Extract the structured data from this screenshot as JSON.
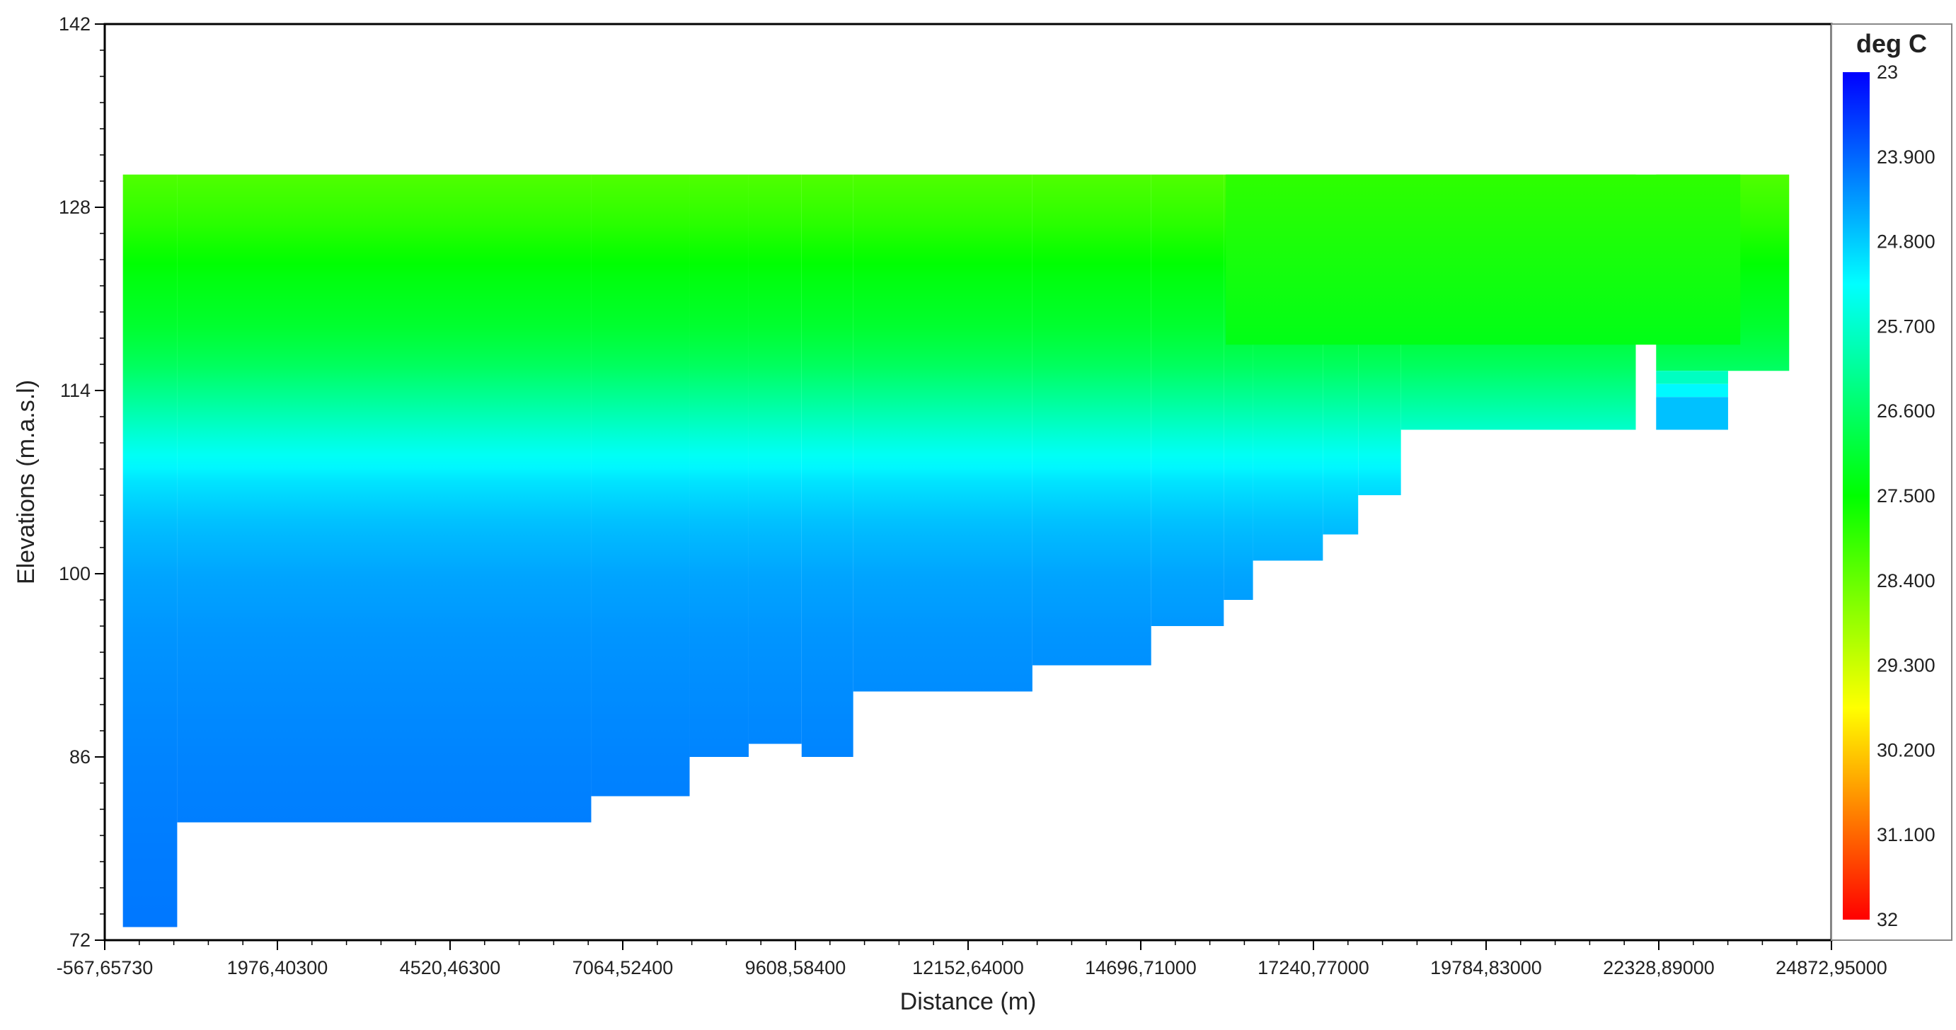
{
  "chart_data": {
    "type": "heatmap",
    "title": "",
    "xlabel": "Distance (m)",
    "ylabel": "Elevations (m.a.s.l)",
    "xlim": [
      -567.6573,
      24872.95
    ],
    "ylim": [
      72,
      142
    ],
    "x_tick_labels": [
      "-567,65730",
      "1976,40300",
      "4520,46300",
      "7064,52400",
      "9608,58400",
      "12152,64000",
      "14696,71000",
      "17240,77000",
      "19784,83000",
      "22328,89000",
      "24872,95000"
    ],
    "y_tick_labels": [
      "142",
      "128",
      "114",
      "100",
      "86",
      "72"
    ],
    "y_ticks": [
      142,
      128,
      114,
      100,
      86,
      72
    ],
    "grid": false,
    "legend_position": "right",
    "colorbar": {
      "title": "deg C",
      "min": 23,
      "max": 32,
      "labels": [
        "23",
        "23.900",
        "24.800",
        "25.700",
        "26.600",
        "27.500",
        "28.400",
        "29.300",
        "30.200",
        "31.100",
        "32"
      ],
      "colors": [
        "#0000ff",
        "#0080ff",
        "#00ffff",
        "#00ff80",
        "#00ff00",
        "#80ff00",
        "#ffff00",
        "#ff8000",
        "#ff0000"
      ]
    },
    "water_surface_elevation": 130.5,
    "temperature_profile": [
      {
        "elevation": 130.5,
        "temp": 28.2
      },
      {
        "elevation": 127,
        "temp": 27.9
      },
      {
        "elevation": 123,
        "temp": 27.4
      },
      {
        "elevation": 119,
        "temp": 27.1
      },
      {
        "elevation": 116,
        "temp": 26.7
      },
      {
        "elevation": 113,
        "temp": 26.1
      },
      {
        "elevation": 110,
        "temp": 25.5
      },
      {
        "elevation": 107,
        "temp": 25.0
      },
      {
        "elevation": 104,
        "temp": 24.7
      },
      {
        "elevation": 100,
        "temp": 24.45
      },
      {
        "elevation": 95,
        "temp": 24.3
      },
      {
        "elevation": 90,
        "temp": 24.22
      },
      {
        "elevation": 85,
        "temp": 24.15
      },
      {
        "elevation": 80,
        "temp": 24.1
      },
      {
        "elevation": 73,
        "temp": 24.05
      }
    ],
    "bottom_profile": [
      {
        "x_from": -300,
        "x_to": 500,
        "bottom": 73
      },
      {
        "x_from": 500,
        "x_to": 6600,
        "bottom": 81
      },
      {
        "x_from": 6600,
        "x_to": 8050,
        "bottom": 83
      },
      {
        "x_from": 8050,
        "x_to": 8920,
        "bottom": 86
      },
      {
        "x_from": 8920,
        "x_to": 9700,
        "bottom": 87
      },
      {
        "x_from": 9700,
        "x_to": 10460,
        "bottom": 86
      },
      {
        "x_from": 10460,
        "x_to": 13100,
        "bottom": 91
      },
      {
        "x_from": 13100,
        "x_to": 14850,
        "bottom": 93
      },
      {
        "x_from": 14850,
        "x_to": 15920,
        "bottom": 96
      },
      {
        "x_from": 15920,
        "x_to": 16350,
        "bottom": 98
      },
      {
        "x_from": 16350,
        "x_to": 17380,
        "bottom": 101
      },
      {
        "x_from": 17380,
        "x_to": 17900,
        "bottom": 103
      },
      {
        "x_from": 17900,
        "x_to": 18530,
        "bottom": 106
      },
      {
        "x_from": 18530,
        "x_to": 21990,
        "bottom": 111
      }
    ],
    "upper_right_region": {
      "x_from": 15950,
      "x_to": 23530,
      "temp_top": 27.9,
      "temp_bottom": 27.3,
      "bottom": 117.5
    },
    "right_tail": {
      "x_from": 22290,
      "x_to": 24250,
      "bottom": 115.5
    },
    "isolated_cells": [
      {
        "x_from": 22290,
        "x_to": 23350,
        "top": 115.5,
        "bottom": 114.5,
        "temp": 25.8
      },
      {
        "x_from": 22290,
        "x_to": 23350,
        "top": 114.5,
        "bottom": 113.5,
        "temp": 25.2
      },
      {
        "x_from": 22290,
        "x_to": 23350,
        "top": 113.5,
        "bottom": 111,
        "temp": 24.7
      }
    ]
  }
}
